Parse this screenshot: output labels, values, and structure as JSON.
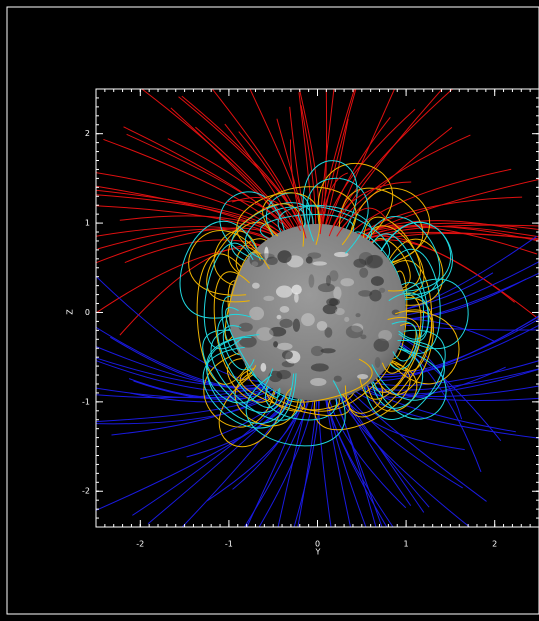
{
  "chart_data": {
    "type": "field-lines",
    "xlabel": "Y",
    "ylabel": "Z",
    "xlim": [
      -2.5,
      2.5
    ],
    "ylim": [
      -2.4,
      2.5
    ],
    "xticks": [
      -2,
      -1,
      0,
      1,
      2
    ],
    "yticks": [
      -2,
      -1,
      0,
      1,
      2
    ]
  }
}
